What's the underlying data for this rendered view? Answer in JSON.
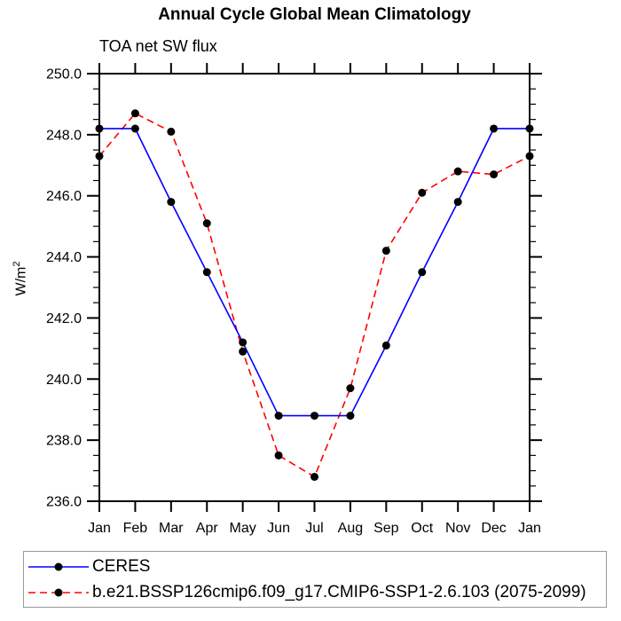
{
  "title": "Annual Cycle Global Mean Climatology",
  "subtitle": "TOA net SW flux",
  "y_axis": {
    "label_base": "W/m",
    "label_exponent": "2",
    "tick_labels": [
      "250.0",
      "248.0",
      "246.0",
      "244.0",
      "242.0",
      "240.0",
      "238.0",
      "236.0"
    ]
  },
  "chart_data": {
    "type": "line",
    "title": "Annual Cycle Global Mean Climatology",
    "subtitle": "TOA net SW flux",
    "ylabel": "W/m^2",
    "categories": [
      "Jan",
      "Feb",
      "Mar",
      "Apr",
      "May",
      "Jun",
      "Jul",
      "Aug",
      "Sep",
      "Oct",
      "Nov",
      "Dec",
      "Jan"
    ],
    "series": [
      {
        "name": "CERES",
        "color": "#0000ff",
        "line_style": "solid",
        "marker": "filled-circle",
        "marker_color": "#000000",
        "values": [
          248.2,
          248.2,
          245.8,
          243.5,
          241.2,
          238.8,
          238.8,
          238.8,
          241.1,
          243.5,
          245.8,
          248.2,
          248.2
        ]
      },
      {
        "name": "b.e21.BSSP126cmip6.f09_g17.CMIP6-SSP1-2.6.103 (2075-2099)",
        "color": "#ff0000",
        "line_style": "dashed",
        "marker": "filled-circle",
        "marker_color": "#000000",
        "values": [
          247.3,
          248.7,
          248.1,
          245.1,
          240.9,
          237.5,
          236.8,
          239.7,
          244.2,
          246.1,
          246.8,
          246.7,
          247.3
        ]
      }
    ],
    "ylim": [
      236.0,
      250.0
    ],
    "ytick_major_interval": 2.0,
    "ytick_minor_interval": 0.5,
    "grid": false,
    "legend_position": "bottom-left"
  }
}
